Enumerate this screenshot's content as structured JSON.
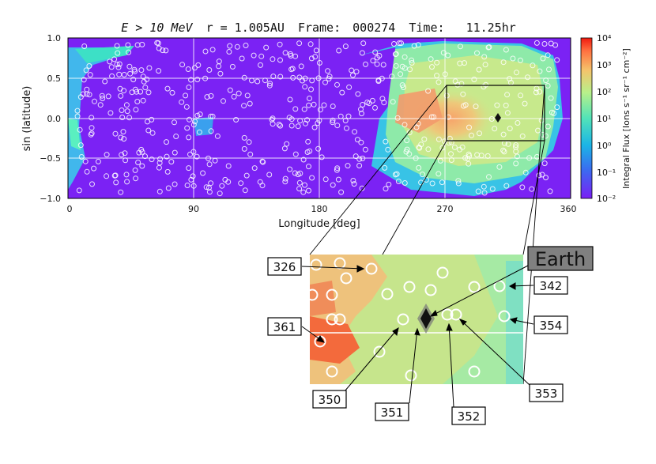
{
  "chart_data": {
    "type": "heatmap",
    "title": {
      "energy_expr": "E > 10 MeV",
      "radius_expr": "r = 1.005AU",
      "frame_label": "Frame:",
      "frame_value": "000274",
      "time_label": "Time:",
      "time_value": "11.25hr"
    },
    "xlabel": "Longitude [deg]",
    "ylabel": "sin (latitude)",
    "xlim": [
      0,
      360
    ],
    "ylim": [
      -1.0,
      1.0
    ],
    "xticks": [
      0,
      90,
      180,
      270,
      360
    ],
    "xtick_labels": [
      "0",
      "90",
      "180",
      "270",
      "360"
    ],
    "yticks": [
      1.0,
      0.5,
      0.0,
      -0.5,
      -1.0
    ],
    "ytick_labels": [
      "1.0",
      "0.5",
      "0.0",
      "−0.5",
      "−1.0"
    ],
    "grid": true,
    "colorbar": {
      "label": "Integral Flux [Ions s⁻¹ sr⁻¹ cm⁻²]",
      "scale": "log",
      "range": [
        0.01,
        10000
      ],
      "tick_labels": [
        "10⁴",
        "10³",
        "10²",
        "10¹",
        "10⁰",
        "10⁻¹",
        "10⁻²"
      ],
      "colormap": "rainbow"
    },
    "earth_position": {
      "lon": 308,
      "sin_lat": 0.05
    },
    "zoom_region": {
      "lon": [
        270,
        340
      ],
      "sin_lat": [
        -0.25,
        0.25
      ]
    },
    "field_line_callouts": [
      {
        "label": "326",
        "lon": 277,
        "sin_lat": 0.15
      },
      {
        "label": "342",
        "lon": 327,
        "sin_lat": 0.07
      },
      {
        "label": "361",
        "lon": 272,
        "sin_lat": -0.02
      },
      {
        "label": "354",
        "lon": 331,
        "sin_lat": 0.02
      },
      {
        "label": "350",
        "lon": 300,
        "sin_lat": 0.02
      },
      {
        "label": "351",
        "lon": 306,
        "sin_lat": 0.02
      },
      {
        "label": "352",
        "lon": 313,
        "sin_lat": 0.02
      },
      {
        "label": "353",
        "lon": 315,
        "sin_lat": 0.02
      }
    ],
    "earth_label": "Earth"
  }
}
